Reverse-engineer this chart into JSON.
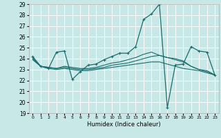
{
  "title": "",
  "xlabel": "Humidex (Indice chaleur)",
  "xlim": [
    -0.5,
    23.5
  ],
  "ylim": [
    19,
    29
  ],
  "yticks": [
    19,
    20,
    21,
    22,
    23,
    24,
    25,
    26,
    27,
    28,
    29
  ],
  "xticks": [
    0,
    1,
    2,
    3,
    4,
    5,
    6,
    7,
    8,
    9,
    10,
    11,
    12,
    13,
    14,
    15,
    16,
    17,
    18,
    19,
    20,
    21,
    22,
    23
  ],
  "bg_color": "#c8e8e8",
  "grid_color": "#ffffff",
  "line_color": "#1a6b6b",
  "main_series_x": [
    0,
    1,
    2,
    3,
    4,
    5,
    6,
    7,
    8,
    9,
    10,
    11,
    12,
    13,
    14,
    15,
    16,
    17,
    18,
    19,
    20,
    21,
    22,
    23
  ],
  "main_series_y": [
    24.2,
    23.3,
    23.1,
    24.6,
    24.7,
    22.1,
    22.8,
    23.4,
    23.5,
    23.9,
    24.2,
    24.5,
    24.5,
    25.1,
    27.6,
    28.1,
    29.0,
    19.5,
    23.4,
    23.5,
    25.1,
    24.7,
    24.6,
    22.5
  ],
  "smooth1_x": [
    0,
    1,
    2,
    3,
    4,
    5,
    6,
    7,
    8,
    9,
    10,
    11,
    12,
    13,
    14,
    15,
    16,
    17,
    18,
    19,
    20,
    21,
    22,
    23
  ],
  "smooth1_y": [
    24.1,
    23.3,
    23.2,
    23.1,
    23.3,
    23.2,
    23.1,
    23.1,
    23.2,
    23.4,
    23.6,
    23.7,
    23.9,
    24.1,
    24.4,
    24.6,
    24.3,
    24.1,
    24.0,
    23.8,
    23.3,
    23.0,
    22.9,
    22.5
  ],
  "smooth2_x": [
    0,
    1,
    2,
    3,
    4,
    5,
    6,
    7,
    8,
    9,
    10,
    11,
    12,
    13,
    14,
    15,
    16,
    17,
    18,
    19,
    20,
    21,
    22,
    23
  ],
  "smooth2_y": [
    24.0,
    23.3,
    23.2,
    23.1,
    23.2,
    23.1,
    23.0,
    23.0,
    23.1,
    23.2,
    23.4,
    23.5,
    23.6,
    23.8,
    24.0,
    24.2,
    24.3,
    24.1,
    23.9,
    23.7,
    23.3,
    23.0,
    22.8,
    22.5
  ],
  "smooth3_x": [
    0,
    1,
    2,
    3,
    4,
    5,
    6,
    7,
    8,
    9,
    10,
    11,
    12,
    13,
    14,
    15,
    16,
    17,
    18,
    19,
    20,
    21,
    22,
    23
  ],
  "smooth3_y": [
    23.9,
    23.3,
    23.1,
    23.0,
    23.1,
    23.0,
    22.9,
    22.9,
    23.0,
    23.1,
    23.2,
    23.3,
    23.4,
    23.5,
    23.6,
    23.7,
    23.7,
    23.5,
    23.3,
    23.1,
    23.0,
    22.9,
    22.7,
    22.5
  ]
}
